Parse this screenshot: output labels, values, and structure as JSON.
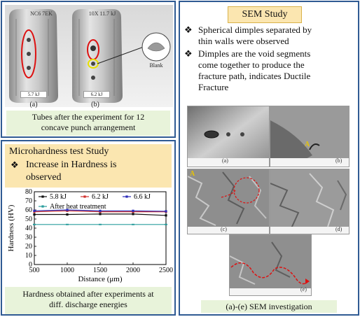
{
  "tubes_panel": {
    "caption_line1": "Tubes after the experiment for 12",
    "caption_line2": "concave punch arrangement",
    "tube_a_energy": "5.7 kJ",
    "tube_b_energy": "6.2 kJ",
    "tube_a_handwriting": "NC6 7EK",
    "tube_b_handwriting": "10X 11.7 kJ",
    "label_a": "(a)",
    "label_b": "(b)",
    "blank_label": "Blank"
  },
  "hardness_panel": {
    "title": "Microhardness test Study",
    "bullet_line1": "Increase in Hardness is",
    "bullet_line2": "observed",
    "caption_line1": "Hardness obtained after experiments at",
    "caption_line2": "diff. discharge energies",
    "bullet_glyph": "❖"
  },
  "chart_data": {
    "type": "line",
    "xlabel": "Distance (μm)",
    "ylabel": "Hardness (HV)",
    "xlim": [
      500,
      2500
    ],
    "ylim": [
      0,
      80
    ],
    "xticks": [
      500,
      1000,
      1500,
      2000,
      2500
    ],
    "yticks": [
      0,
      10,
      20,
      30,
      40,
      50,
      60,
      70,
      80
    ],
    "grid": false,
    "legend_position": "top",
    "x": [
      500,
      1000,
      1500,
      2000,
      2500
    ],
    "series": [
      {
        "name": "5.8 kJ",
        "color": "#111111",
        "values": [
          55,
          55,
          55.5,
          55.5,
          54
        ]
      },
      {
        "name": "6.2 kJ",
        "color": "#d0312d",
        "values": [
          58,
          59,
          58,
          58,
          58
        ]
      },
      {
        "name": "6.6 kJ",
        "color": "#2a2ab8",
        "values": [
          59,
          60,
          59,
          59,
          58.5
        ]
      },
      {
        "name": "After heat treatment",
        "color": "#2a9d9d",
        "values": [
          44,
          44,
          44,
          44,
          44
        ]
      }
    ]
  },
  "sem_panel": {
    "title": "SEM Study",
    "bullet_glyph": "❖",
    "bullet1_lines": [
      "Spherical dimples separated by",
      "thin walls were observed"
    ],
    "bullet2_lines": [
      "Dimples are the void segments",
      "come together to produce the",
      "fracture path, indicates Ductile",
      "Fracture"
    ],
    "labels": [
      "(a)",
      "(b)",
      "(c)",
      "(d)",
      "(e)"
    ],
    "marker_a": "A",
    "caption": "(a)-(e) SEM investigation"
  }
}
